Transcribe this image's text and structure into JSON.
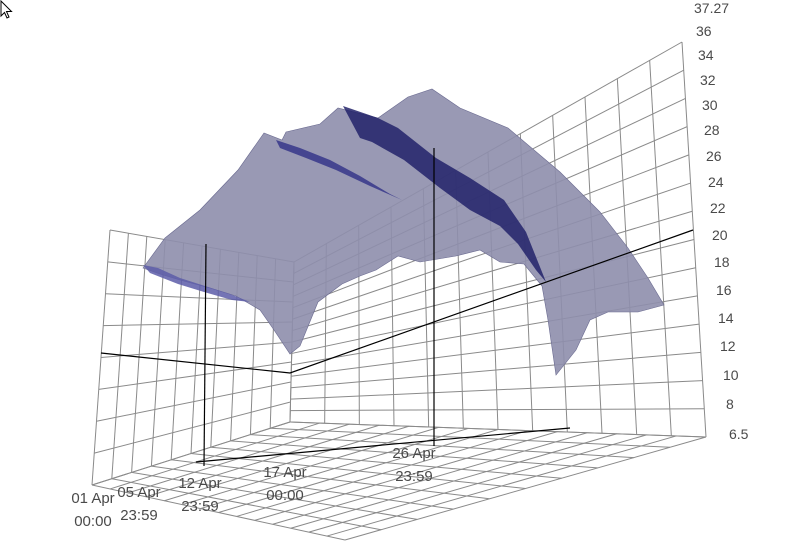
{
  "chart_data": {
    "type": "surface3d",
    "title": "",
    "z_axis": {
      "range": [
        6.5,
        37.27
      ],
      "ticks": [
        6.5,
        8,
        10,
        12,
        14,
        16,
        18,
        20,
        22,
        24,
        26,
        28,
        30,
        32,
        34,
        36,
        37.27
      ],
      "tick_labels": [
        "6.5",
        "8",
        "10",
        "12",
        "14",
        "16",
        "18",
        "20",
        "22",
        "24",
        "26",
        "28",
        "30",
        "32",
        "34",
        "36",
        "37.27"
      ]
    },
    "x_axis": {
      "tick_labels": [
        {
          "line1": "01 Apr",
          "line2": "00:00"
        },
        {
          "line1": "05 Apr",
          "line2": "23:59"
        },
        {
          "line1": "12 Apr",
          "line2": "23:59"
        },
        {
          "line1": "17 Apr",
          "line2": "00:00"
        },
        {
          "line1": "26 Apr",
          "line2": "23:59"
        }
      ]
    },
    "grid": true,
    "surface_color": "#8e8eac",
    "highlight_color": "#22226a",
    "surface_peak_estimate": 33.5,
    "surface_min_estimate": 10.5
  }
}
